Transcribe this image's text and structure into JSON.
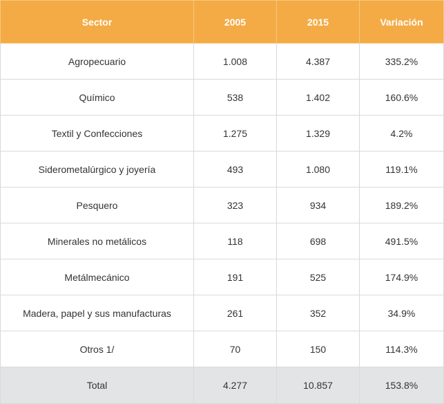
{
  "table": {
    "headers": [
      "Sector",
      "2005",
      "2015",
      "Variación"
    ],
    "rows": [
      [
        "Agropecuario",
        "1.008",
        "4.387",
        "335.2%"
      ],
      [
        "Químico",
        "538",
        "1.402",
        "160.6%"
      ],
      [
        "Textil y Confecciones",
        "1.275",
        "1.329",
        "4.2%"
      ],
      [
        "Siderometalúrgico y joyería",
        "493",
        "1.080",
        "119.1%"
      ],
      [
        "Pesquero",
        "323",
        "934",
        "189.2%"
      ],
      [
        "Minerales no metálicos",
        "118",
        "698",
        "491.5%"
      ],
      [
        "Metálmecánico",
        "191",
        "525",
        "174.9%"
      ],
      [
        "Madera, papel y sus manufacturas",
        "261",
        "352",
        "34.9%"
      ],
      [
        "Otros 1/",
        "70",
        "150",
        "114.3%"
      ]
    ],
    "total": [
      "Total",
      "4.277",
      "10.857",
      "153.8%"
    ]
  },
  "colors": {
    "header_bg": "#f4ab45",
    "header_text": "#ffffff",
    "total_bg": "#e3e4e6",
    "border": "#d9d9d9"
  }
}
